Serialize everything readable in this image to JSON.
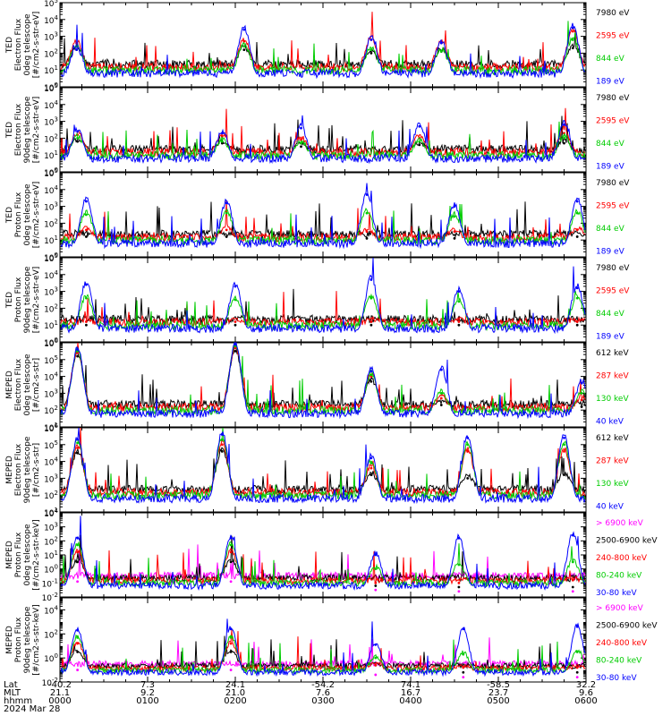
{
  "chart_data": {
    "type": "line",
    "panels": [
      {
        "ylabel": [
          "TED",
          "Electron Flux",
          "0deg telescope",
          "[#/cm2-s-str-eV]"
        ],
        "ytick_exponents": [
          0,
          1,
          2,
          3,
          4,
          5
        ],
        "ylim_log10": [
          0,
          5
        ],
        "channels": [
          {
            "name": "7980 eV",
            "color": "#000000"
          },
          {
            "name": "2595 eV",
            "color": "#ff0000"
          },
          {
            "name": "844 eV",
            "color": "#00cc00"
          },
          {
            "name": "189 eV",
            "color": "#0000ff"
          }
        ],
        "peaks": [
          {
            "t": 0.19,
            "values": {
              "7980 eV": 2.2,
              "2595 eV": 2.6,
              "844 eV": 2.4,
              "189 eV": 2.2
            }
          },
          {
            "t": 2.1,
            "values": {
              "7980 eV": 2.2,
              "2595 eV": 2.7,
              "844 eV": 2.4,
              "189 eV": 3.4
            }
          },
          {
            "t": 3.55,
            "values": {
              "7980 eV": 2.0,
              "2595 eV": 2.8,
              "844 eV": 2.2,
              "189 eV": 2.8
            }
          },
          {
            "t": 4.35,
            "values": {
              "7980 eV": 2.1,
              "2595 eV": 2.6,
              "844 eV": 2.1,
              "189 eV": 2.6
            }
          },
          {
            "t": 5.85,
            "values": {
              "7980 eV": 2.3,
              "2595 eV": 3.3,
              "844 eV": 2.8,
              "189 eV": 3.5
            }
          }
        ]
      },
      {
        "ylabel": [
          "TED",
          "Electron Flux",
          "90deg telescope",
          "[#/cm2-s-str-eV]"
        ],
        "ytick_exponents": [
          0,
          1,
          2,
          3,
          4,
          5
        ],
        "ylim_log10": [
          0,
          5
        ],
        "channels": [
          {
            "name": "7980 eV",
            "color": "#000000"
          },
          {
            "name": "2595 eV",
            "color": "#ff0000"
          },
          {
            "name": "844 eV",
            "color": "#00cc00"
          },
          {
            "name": "189 eV",
            "color": "#0000ff"
          }
        ],
        "peaks": [
          {
            "t": 0.2,
            "values": {
              "7980 eV": 1.8,
              "2595 eV": 2.2,
              "844 eV": 2.0,
              "189 eV": 2.4
            }
          },
          {
            "t": 1.85,
            "values": {
              "7980 eV": 1.7,
              "2595 eV": 2.1,
              "844 eV": 1.8,
              "189 eV": 2.3
            }
          },
          {
            "t": 2.75,
            "values": {
              "7980 eV": 1.5,
              "2595 eV": 1.9,
              "844 eV": 1.7,
              "189 eV": 2.6
            }
          },
          {
            "t": 4.1,
            "values": {
              "7980 eV": 1.6,
              "2595 eV": 2.0,
              "844 eV": 1.8,
              "189 eV": 2.7
            }
          },
          {
            "t": 5.75,
            "values": {
              "7980 eV": 1.7,
              "2595 eV": 2.3,
              "844 eV": 2.0,
              "189 eV": 2.8
            }
          }
        ]
      },
      {
        "ylabel": [
          "TED",
          "Proton Flux",
          "0deg telescope",
          "[#/cm2-s-str-eV]"
        ],
        "ytick_exponents": [
          0,
          1,
          2,
          3,
          4,
          5
        ],
        "ylim_log10": [
          0,
          5
        ],
        "channels": [
          {
            "name": "7980 eV",
            "color": "#000000"
          },
          {
            "name": "2595 eV",
            "color": "#ff0000"
          },
          {
            "name": "844 eV",
            "color": "#00cc00"
          },
          {
            "name": "189 eV",
            "color": "#0000ff"
          }
        ],
        "peaks": [
          {
            "t": 0.3,
            "values": {
              "7980 eV": 1.2,
              "2595 eV": 1.6,
              "844 eV": 2.5,
              "189 eV": 3.3
            }
          },
          {
            "t": 1.9,
            "values": {
              "7980 eV": 1.2,
              "2595 eV": 1.6,
              "844 eV": 2.6,
              "189 eV": 3.2
            }
          },
          {
            "t": 3.5,
            "values": {
              "7980 eV": 1.1,
              "2595 eV": 1.5,
              "844 eV": 2.6,
              "189 eV": 3.7
            }
          },
          {
            "t": 4.5,
            "values": {
              "7980 eV": 1.1,
              "2595 eV": 1.5,
              "844 eV": 2.4,
              "189 eV": 3.0
            }
          },
          {
            "t": 5.9,
            "values": {
              "7980 eV": 1.2,
              "2595 eV": 1.6,
              "844 eV": 2.6,
              "189 eV": 3.3
            }
          }
        ]
      },
      {
        "ylabel": [
          "TED",
          "Proton Flux",
          "90deg telescope",
          "[#/cm2-s-str-eV]"
        ],
        "ytick_exponents": [
          0,
          1,
          2,
          3,
          4,
          5
        ],
        "ylim_log10": [
          0,
          5
        ],
        "channels": [
          {
            "name": "7980 eV",
            "color": "#000000"
          },
          {
            "name": "2595 eV",
            "color": "#ff0000"
          },
          {
            "name": "844 eV",
            "color": "#00cc00"
          },
          {
            "name": "189 eV",
            "color": "#0000ff"
          }
        ],
        "peaks": [
          {
            "t": 0.3,
            "values": {
              "7980 eV": 1.0,
              "2595 eV": 1.2,
              "844 eV": 2.6,
              "189 eV": 3.4
            }
          },
          {
            "t": 2.0,
            "values": {
              "7980 eV": 1.0,
              "2595 eV": 1.2,
              "844 eV": 2.5,
              "189 eV": 3.3
            }
          },
          {
            "t": 3.55,
            "values": {
              "7980 eV": 1.0,
              "2595 eV": 1.2,
              "844 eV": 2.6,
              "189 eV": 3.7
            }
          },
          {
            "t": 4.55,
            "values": {
              "7980 eV": 1.0,
              "2595 eV": 1.2,
              "844 eV": 2.4,
              "189 eV": 3.0
            }
          },
          {
            "t": 5.9,
            "values": {
              "7980 eV": 1.0,
              "2595 eV": 1.2,
              "844 eV": 2.6,
              "189 eV": 3.2
            }
          }
        ]
      },
      {
        "ylabel": [
          "MEPED",
          "Electron Flux",
          "0deg telescope",
          "[#/cm2-s-str]"
        ],
        "ytick_exponents": [
          1,
          2,
          3,
          4,
          5,
          6
        ],
        "ylim_log10": [
          1,
          6
        ],
        "channels": [
          {
            "name": "612 keV",
            "color": "#000000"
          },
          {
            "name": "287 keV",
            "color": "#ff0000"
          },
          {
            "name": "130 keV",
            "color": "#00cc00"
          },
          {
            "name": "40 keV",
            "color": "#0000ff"
          }
        ],
        "peaks": [
          {
            "t": 0.2,
            "values": {
              "612 keV": 5.2,
              "287 keV": 5.4,
              "130 keV": 5.5,
              "40 keV": 5.6
            }
          },
          {
            "t": 2.0,
            "values": {
              "612 keV": 5.5,
              "287 keV": 5.7,
              "130 keV": 5.8,
              "40 keV": 5.9
            }
          },
          {
            "t": 3.55,
            "values": {
              "612 keV": 3.7,
              "287 keV": 4.0,
              "130 keV": 4.1,
              "40 keV": 4.3
            }
          },
          {
            "t": 4.35,
            "values": {
              "612 keV": 2.3,
              "287 keV": 2.7,
              "130 keV": 3.0,
              "40 keV": 4.4
            }
          },
          {
            "t": 5.95,
            "values": {
              "612 keV": 2.2,
              "287 keV": 2.6,
              "130 keV": 3.0,
              "40 keV": 3.6
            }
          }
        ]
      },
      {
        "ylabel": [
          "MEPED",
          "Electron Flux",
          "90deg telescope",
          "[#/cm2-s-str]"
        ],
        "ytick_exponents": [
          1,
          2,
          3,
          4,
          5,
          6
        ],
        "ylim_log10": [
          1,
          6
        ],
        "channels": [
          {
            "name": "612 keV",
            "color": "#000000"
          },
          {
            "name": "287 keV",
            "color": "#ff0000"
          },
          {
            "name": "130 keV",
            "color": "#00cc00"
          },
          {
            "name": "40 keV",
            "color": "#0000ff"
          }
        ],
        "peaks": [
          {
            "t": 0.2,
            "values": {
              "612 keV": 4.5,
              "287 keV": 4.8,
              "130 keV": 5.1,
              "40 keV": 5.3
            }
          },
          {
            "t": 1.85,
            "values": {
              "612 keV": 4.6,
              "287 keV": 5.0,
              "130 keV": 5.3,
              "40 keV": 5.6
            }
          },
          {
            "t": 3.55,
            "values": {
              "612 keV": 3.2,
              "287 keV": 3.6,
              "130 keV": 3.9,
              "40 keV": 4.2
            }
          },
          {
            "t": 4.65,
            "values": {
              "612 keV": 3.0,
              "287 keV": 4.6,
              "130 keV": 5.0,
              "40 keV": 5.4
            }
          },
          {
            "t": 5.75,
            "values": {
              "612 keV": 3.2,
              "287 keV": 4.6,
              "130 keV": 5.0,
              "40 keV": 5.4
            }
          }
        ]
      },
      {
        "ylabel": [
          "MEPED",
          "Proton Flux",
          "0deg telescope",
          "[#/cm2-s-str-keV]"
        ],
        "ytick_exponents": [
          -2,
          -1,
          0,
          1,
          2,
          3,
          4
        ],
        "ylim_log10": [
          -2,
          4
        ],
        "channels": [
          {
            "name": "> 6900 keV",
            "color": "#ff00ff"
          },
          {
            "name": "2500-6900 keV",
            "color": "#000000"
          },
          {
            "name": "240-800 keV",
            "color": "#ff0000"
          },
          {
            "name": "80-240 keV",
            "color": "#00cc00"
          },
          {
            "name": "30-80 keV",
            "color": "#0000ff"
          }
        ],
        "peaks": [
          {
            "t": 0.2,
            "values": {
              "> 6900 keV": -0.9,
              "2500-6900 keV": 0.5,
              "240-800 keV": 1.2,
              "80-240 keV": 1.7,
              "30-80 keV": 2.2
            }
          },
          {
            "t": 1.95,
            "values": {
              "> 6900 keV": -0.9,
              "2500-6900 keV": 0.5,
              "240-800 keV": 1.2,
              "80-240 keV": 1.7,
              "30-80 keV": 2.2
            }
          },
          {
            "t": 3.6,
            "values": {
              "> 6900 keV": -1.5,
              "2500-6900 keV": -1.2,
              "240-800 keV": -1.0,
              "80-240 keV": 0.0,
              "30-80 keV": 1.0
            }
          },
          {
            "t": 4.55,
            "values": {
              "> 6900 keV": -1.6,
              "2500-6900 keV": -1.3,
              "240-800 keV": -1.0,
              "80-240 keV": 0.3,
              "30-80 keV": 2.2
            }
          },
          {
            "t": 5.85,
            "values": {
              "> 6900 keV": -1.6,
              "2500-6900 keV": -1.3,
              "240-800 keV": -0.8,
              "80-240 keV": 0.5,
              "30-80 keV": 2.4
            }
          }
        ]
      },
      {
        "ylabel": [
          "MEPED",
          "Proton Flux",
          "90deg telescope",
          "[#/cm2-s-str-keV]"
        ],
        "ytick_exponents": [
          -2,
          0,
          2,
          4
        ],
        "ylim_log10": [
          -2,
          5
        ],
        "channels": [
          {
            "name": "> 6900 keV",
            "color": "#ff00ff"
          },
          {
            "name": "2500-6900 keV",
            "color": "#000000"
          },
          {
            "name": "240-800 keV",
            "color": "#ff0000"
          },
          {
            "name": "80-240 keV",
            "color": "#00cc00"
          },
          {
            "name": "30-80 keV",
            "color": "#0000ff"
          }
        ],
        "peaks": [
          {
            "t": 0.2,
            "values": {
              "> 6900 keV": -1.0,
              "2500-6900 keV": 0.5,
              "240-800 keV": 1.2,
              "80-240 keV": 1.7,
              "30-80 keV": 2.3
            }
          },
          {
            "t": 1.95,
            "values": {
              "> 6900 keV": -1.0,
              "2500-6900 keV": 0.5,
              "240-800 keV": 1.2,
              "80-240 keV": 1.7,
              "30-80 keV": 2.4
            }
          },
          {
            "t": 3.6,
            "values": {
              "> 6900 keV": -1.4,
              "2500-6900 keV": -0.6,
              "240-800 keV": -0.6,
              "80-240 keV": 0.0,
              "30-80 keV": 1.1
            }
          },
          {
            "t": 4.6,
            "values": {
              "> 6900 keV": -1.6,
              "2500-6900 keV": -1.2,
              "240-800 keV": -0.8,
              "80-240 keV": 0.3,
              "30-80 keV": 2.4
            }
          },
          {
            "t": 5.9,
            "values": {
              "> 6900 keV": -1.6,
              "2500-6900 keV": -1.2,
              "240-800 keV": -0.8,
              "80-240 keV": 0.5,
              "30-80 keV": 2.6
            }
          }
        ]
      }
    ],
    "x_axis": {
      "row_labels": [
        "Lat",
        "MLT",
        "hhmm",
        "2024 Mar 28"
      ],
      "ticks": [
        {
          "t": 0.0,
          "lat": "-40.2",
          "mlt": "21.1",
          "hhmm": "0000"
        },
        {
          "t": 1.0,
          "lat": "7.3",
          "mlt": "9.2",
          "hhmm": "0100"
        },
        {
          "t": 2.0,
          "lat": "24.1",
          "mlt": "21.0",
          "hhmm": "0200"
        },
        {
          "t": 3.0,
          "lat": "-54.2",
          "mlt": "7.6",
          "hhmm": "0300"
        },
        {
          "t": 4.0,
          "lat": "74.1",
          "mlt": "16.7",
          "hhmm": "0400"
        },
        {
          "t": 5.0,
          "lat": "-58.5",
          "mlt": "23.7",
          "hhmm": "0500"
        },
        {
          "t": 6.0,
          "lat": "32.2",
          "mlt": "9.6",
          "hhmm": "0600"
        }
      ],
      "xlim_hours": [
        0,
        6
      ]
    }
  }
}
